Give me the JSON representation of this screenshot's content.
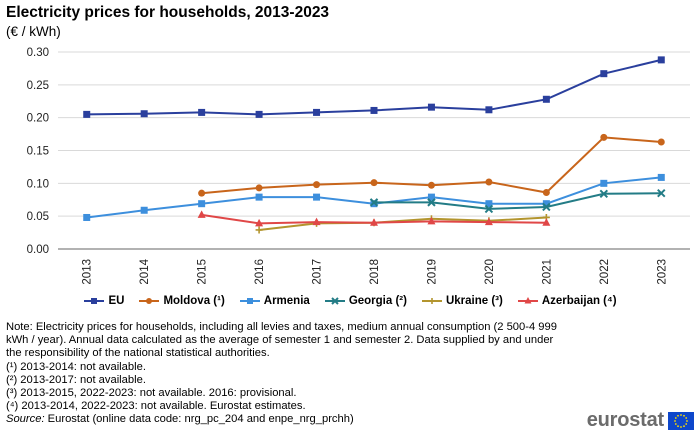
{
  "header": {
    "title": "Electricity prices for households, 2013-2023",
    "subtitle": "(€ / kWh)"
  },
  "chart_data": {
    "type": "line",
    "title": "Electricity prices for households, 2013-2023",
    "ylabel": "(€ / kWh)",
    "xlabel": "",
    "categories": [
      "2013",
      "2014",
      "2015",
      "2016",
      "2017",
      "2018",
      "2019",
      "2020",
      "2021",
      "2022",
      "2023"
    ],
    "y_ticks": [
      "0.00",
      "0.05",
      "0.10",
      "0.15",
      "0.20",
      "0.25",
      "0.30"
    ],
    "ylim": [
      0,
      0.3
    ],
    "grid": true,
    "legend_position": "bottom",
    "series": [
      {
        "name": "EU",
        "legend_label": "EU",
        "color": "#2a3f9d",
        "marker": "square",
        "values": [
          0.205,
          0.206,
          0.208,
          0.205,
          0.208,
          0.211,
          0.216,
          0.212,
          0.228,
          0.267,
          0.288
        ]
      },
      {
        "name": "Moldova",
        "legend_label": "Moldova (¹)",
        "color": "#c8651b",
        "marker": "circle",
        "values": [
          null,
          null,
          0.085,
          0.093,
          0.098,
          0.101,
          0.097,
          0.102,
          0.086,
          0.17,
          0.163
        ]
      },
      {
        "name": "Armenia",
        "legend_label": "Armenia",
        "color": "#3d8fdd",
        "marker": "square",
        "values": [
          0.048,
          0.059,
          0.069,
          0.079,
          0.079,
          0.069,
          0.079,
          0.069,
          0.069,
          0.1,
          0.109
        ]
      },
      {
        "name": "Georgia",
        "legend_label": "Georgia (²)",
        "color": "#237c86",
        "marker": "x",
        "values": [
          null,
          null,
          null,
          null,
          null,
          0.071,
          0.071,
          0.061,
          0.064,
          0.084,
          0.085
        ]
      },
      {
        "name": "Ukraine",
        "legend_label": "Ukraine (³)",
        "color": "#b3952e",
        "marker": "plus",
        "values": [
          null,
          null,
          null,
          0.029,
          0.039,
          0.04,
          0.046,
          0.043,
          0.048,
          null,
          null
        ]
      },
      {
        "name": "Azerbaijan",
        "legend_label": "Azerbaijan (⁴)",
        "color": "#e04747",
        "marker": "triangle",
        "values": [
          null,
          null,
          0.052,
          0.039,
          0.041,
          0.04,
          0.042,
          0.041,
          0.04,
          null,
          null
        ]
      }
    ]
  },
  "notes": [
    "Note: Electricity prices for households, including all levies and taxes, medium annual consumption (2 500-4 999 kWh / year). Annual data calculated as the average of semester 1 and semester 2. Data supplied by and under the responsibility of the national statistical authorities.",
    "(¹) 2013-2014: not available.",
    "(²) 2013-2017: not available.",
    "(³) 2013-2015, 2022-2023: not available. 2016: provisional.",
    "(⁴) 2013-2014, 2022-2023: not available. Eurostat estimates."
  ],
  "source": {
    "label": "Source:",
    "text": "Eurostat (online data code: nrg_pc_204 and enpe_nrg_prchh)"
  },
  "logo": {
    "text": "eurostat",
    "flag_color": "#0e47cb",
    "star_color": "#ffdd00"
  }
}
